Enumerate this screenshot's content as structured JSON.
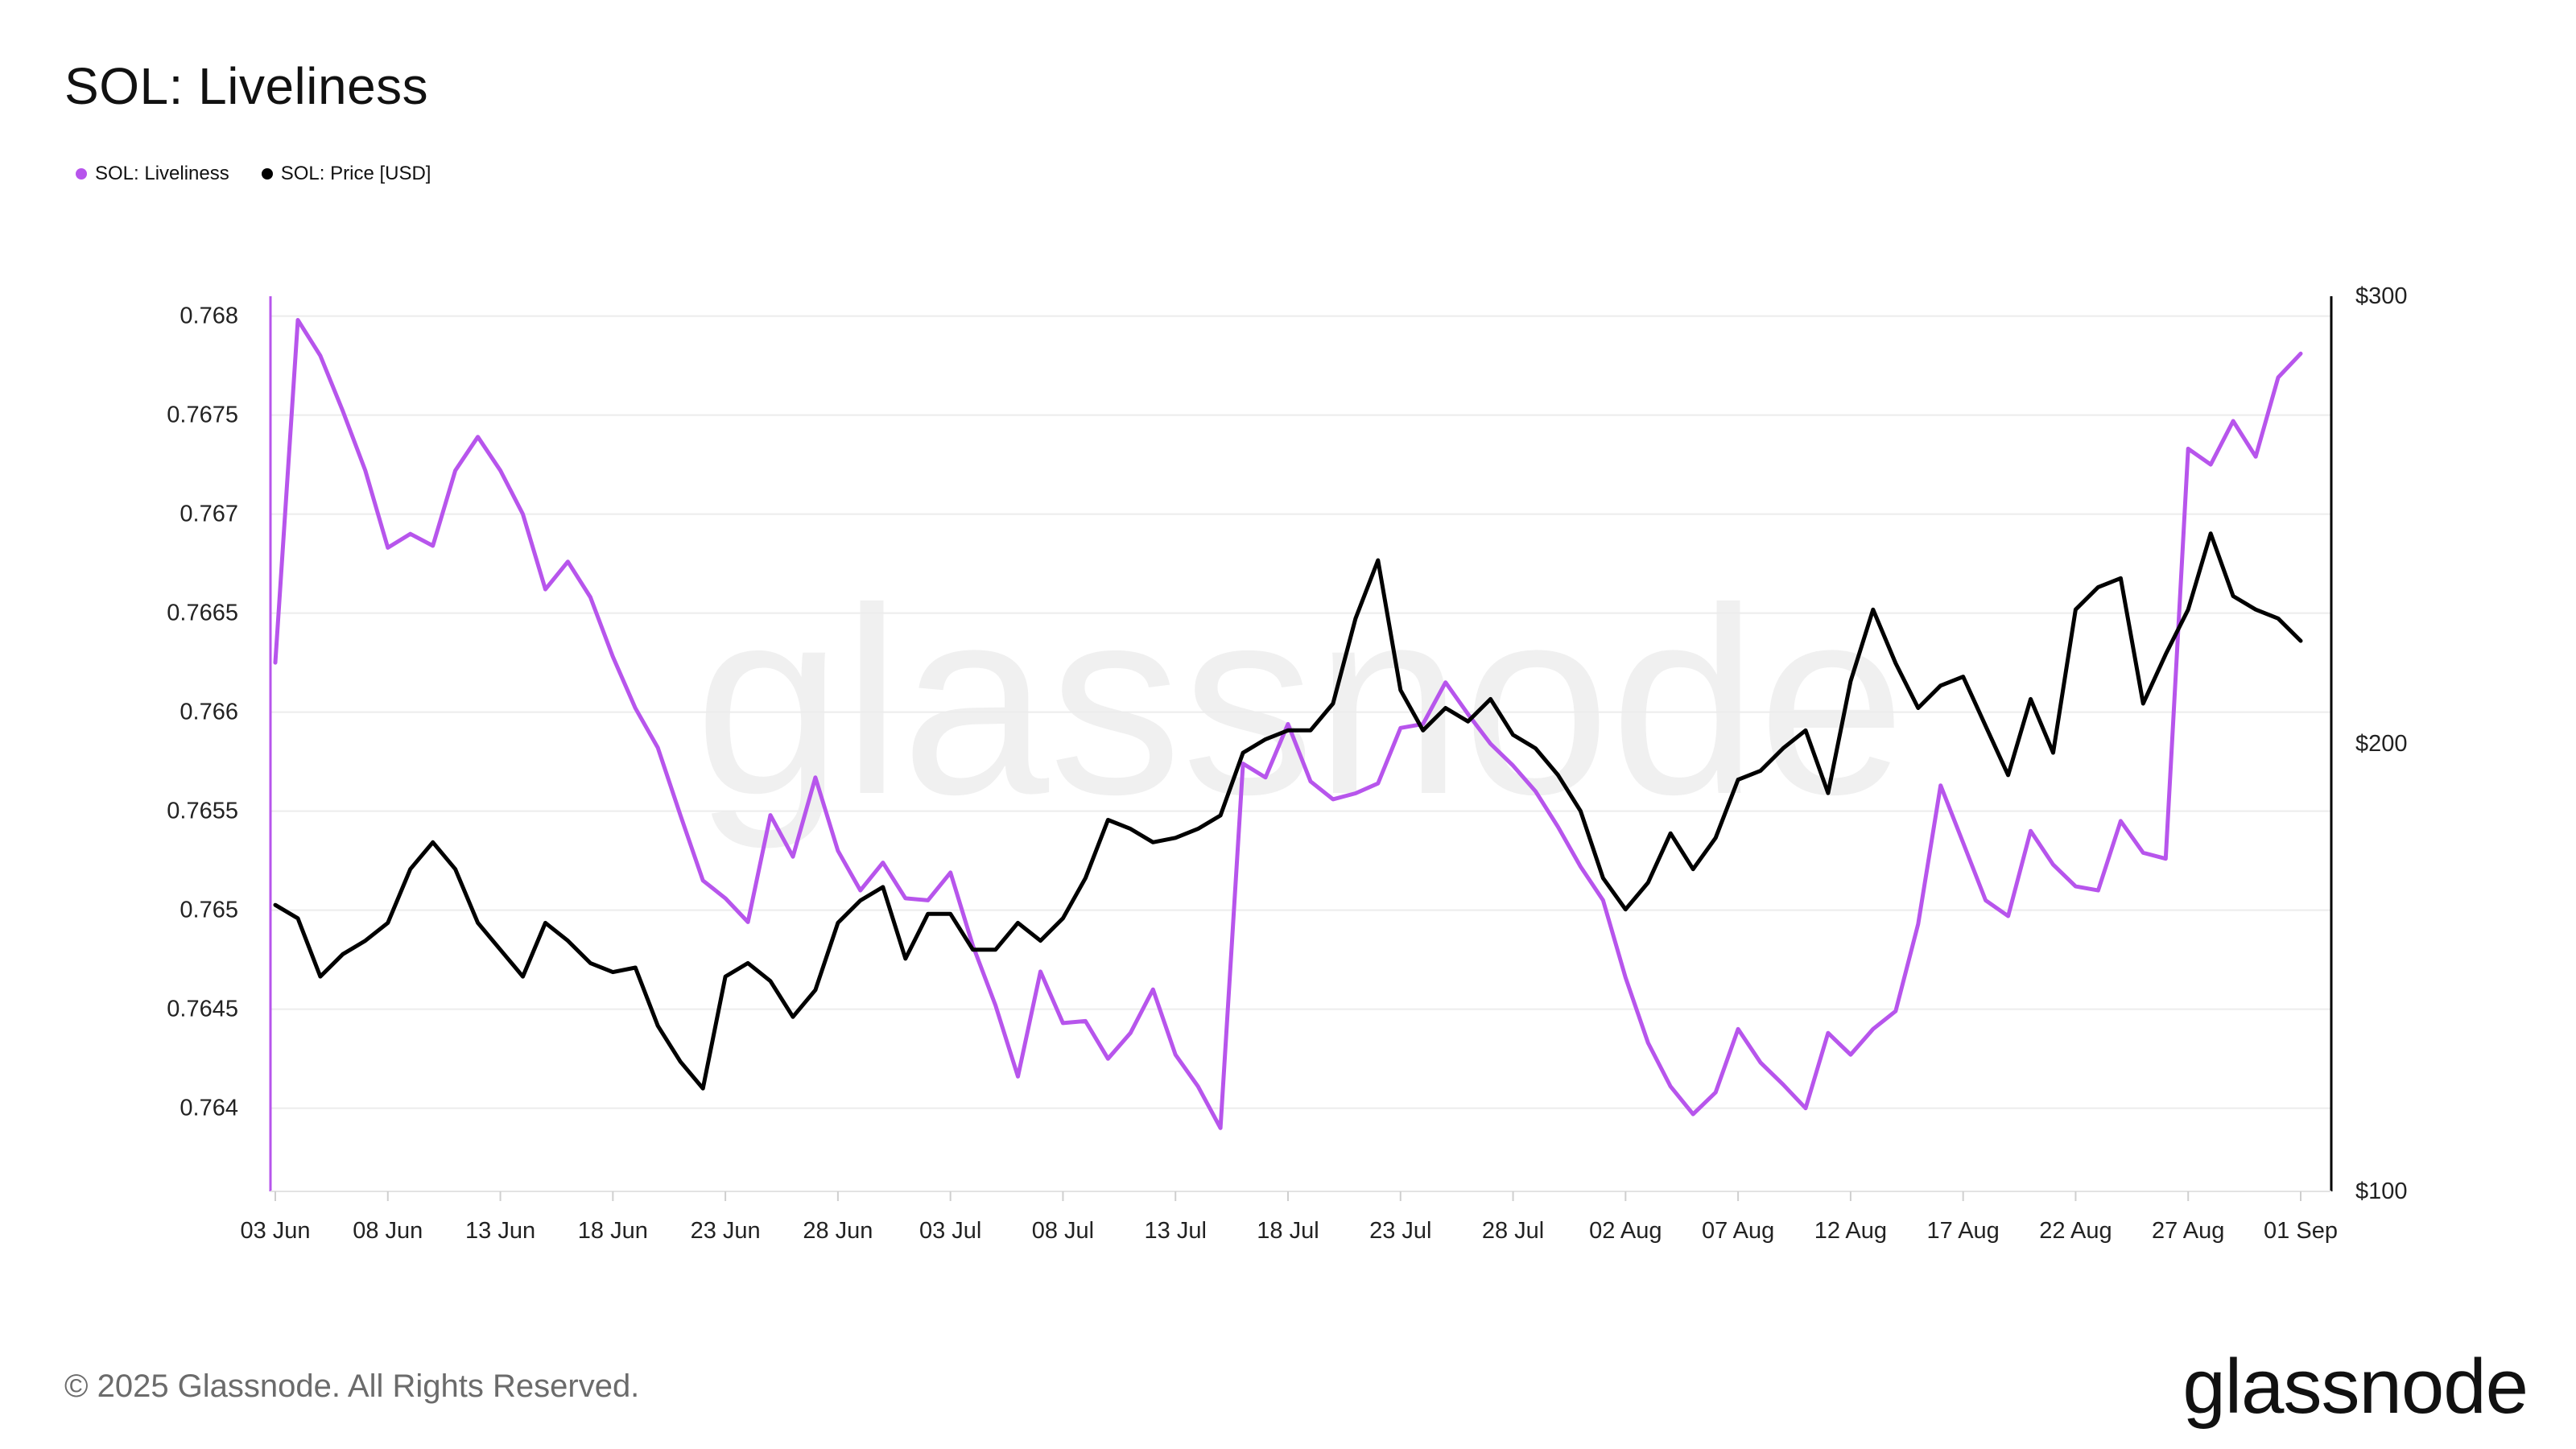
{
  "title": "SOL: Liveliness",
  "legend": {
    "liveliness_label": "SOL: Liveliness",
    "price_label": "SOL: Price [USD]"
  },
  "colors": {
    "liveliness": "#b755ec",
    "price": "#000000",
    "grid": "#ececec"
  },
  "watermark": "glassnode",
  "footer": {
    "copyright": "© 2025 Glassnode. All Rights Reserved.",
    "brand": "glassnode"
  },
  "chart_data": {
    "type": "line",
    "title": "SOL: Liveliness",
    "x_ticks": [
      "03 Jun",
      "08 Jun",
      "13 Jun",
      "18 Jun",
      "23 Jun",
      "28 Jun",
      "03 Jul",
      "08 Jul",
      "13 Jul",
      "18 Jul",
      "23 Jul",
      "28 Jul",
      "02 Aug",
      "07 Aug",
      "12 Aug",
      "17 Aug",
      "22 Aug",
      "27 Aug",
      "01 Sep"
    ],
    "x": [
      "03 Jun",
      "04 Jun",
      "05 Jun",
      "06 Jun",
      "07 Jun",
      "08 Jun",
      "09 Jun",
      "10 Jun",
      "11 Jun",
      "12 Jun",
      "13 Jun",
      "14 Jun",
      "15 Jun",
      "16 Jun",
      "17 Jun",
      "18 Jun",
      "19 Jun",
      "20 Jun",
      "21 Jun",
      "22 Jun",
      "23 Jun",
      "24 Jun",
      "25 Jun",
      "26 Jun",
      "27 Jun",
      "28 Jun",
      "29 Jun",
      "30 Jun",
      "01 Jul",
      "02 Jul",
      "03 Jul",
      "04 Jul",
      "05 Jul",
      "06 Jul",
      "07 Jul",
      "08 Jul",
      "09 Jul",
      "10 Jul",
      "11 Jul",
      "12 Jul",
      "13 Jul",
      "14 Jul",
      "15 Jul",
      "16 Jul",
      "17 Jul",
      "18 Jul",
      "19 Jul",
      "20 Jul",
      "21 Jul",
      "22 Jul",
      "23 Jul",
      "24 Jul",
      "25 Jul",
      "26 Jul",
      "27 Jul",
      "28 Jul",
      "29 Jul",
      "30 Jul",
      "31 Jul",
      "01 Aug",
      "02 Aug",
      "03 Aug",
      "04 Aug",
      "05 Aug",
      "06 Aug",
      "07 Aug",
      "08 Aug",
      "09 Aug",
      "10 Aug",
      "11 Aug",
      "12 Aug",
      "13 Aug",
      "14 Aug",
      "15 Aug",
      "16 Aug",
      "17 Aug",
      "18 Aug",
      "19 Aug",
      "20 Aug",
      "21 Aug",
      "22 Aug",
      "23 Aug",
      "24 Aug",
      "25 Aug",
      "26 Aug",
      "27 Aug",
      "28 Aug",
      "29 Aug",
      "30 Aug",
      "31 Aug",
      "01 Sep"
    ],
    "left_axis": {
      "ticks": [
        "0.764",
        "0.7645",
        "0.765",
        "0.7655",
        "0.766",
        "0.7665",
        "0.767",
        "0.7675",
        "0.768"
      ],
      "range": [
        0.76358,
        0.7681
      ]
    },
    "right_axis": {
      "ticks": [
        "$100",
        "$200",
        "$300"
      ],
      "range": [
        100,
        300
      ]
    },
    "grid": true,
    "legend_position": "top-left",
    "series": [
      {
        "name": "SOL: Liveliness",
        "axis": "left",
        "values": [
          0.76625,
          0.76798,
          0.7678,
          0.76752,
          0.76722,
          0.76683,
          0.7669,
          0.76684,
          0.76722,
          0.76739,
          0.76722,
          0.767,
          0.76662,
          0.76676,
          0.76658,
          0.76628,
          0.76602,
          0.76582,
          0.76548,
          0.76515,
          0.76506,
          0.76494,
          0.76548,
          0.76527,
          0.76567,
          0.7653,
          0.7651,
          0.76524,
          0.76506,
          0.76505,
          0.76519,
          0.76482,
          0.76452,
          0.76416,
          0.76469,
          0.76443,
          0.76444,
          0.76425,
          0.76438,
          0.7646,
          0.76427,
          0.76411,
          0.7639,
          0.76574,
          0.76567,
          0.76594,
          0.76565,
          0.76556,
          0.76559,
          0.76564,
          0.76592,
          0.76594,
          0.76615,
          0.76599,
          0.76584,
          0.76573,
          0.7656,
          0.76542,
          0.76522,
          0.76505,
          0.76466,
          0.76433,
          0.76411,
          0.76397,
          0.76408,
          0.7644,
          0.76423,
          0.76412,
          0.764,
          0.76438,
          0.76427,
          0.7644,
          0.76449,
          0.76493,
          0.76563,
          0.76534,
          0.76505,
          0.76497,
          0.7654,
          0.76523,
          0.76512,
          0.7651,
          0.76545,
          0.76529,
          0.76526,
          0.76733,
          0.76725,
          0.76747,
          0.76729,
          0.76769,
          0.76781
        ]
      },
      {
        "name": "SOL: Price [USD]",
        "axis": "right",
        "values": [
          164,
          161,
          148,
          153,
          156,
          160,
          172,
          178,
          172,
          160,
          154,
          148,
          160,
          156,
          151,
          149,
          150,
          137,
          129,
          123,
          148,
          151,
          147,
          139,
          145,
          160,
          165,
          168,
          152,
          162,
          162,
          154,
          154,
          160,
          156,
          161,
          170,
          183,
          181,
          178,
          179,
          181,
          184,
          198,
          201,
          203,
          203,
          209,
          228,
          241,
          212,
          203,
          208,
          205,
          210,
          202,
          199,
          193,
          185,
          170,
          163,
          169,
          180,
          172,
          179,
          192,
          194,
          199,
          203,
          189,
          214,
          230,
          218,
          208,
          213,
          215,
          204,
          193,
          210,
          198,
          230,
          235,
          237,
          209,
          220,
          230,
          247,
          233,
          230,
          228,
          223
        ]
      }
    ]
  }
}
